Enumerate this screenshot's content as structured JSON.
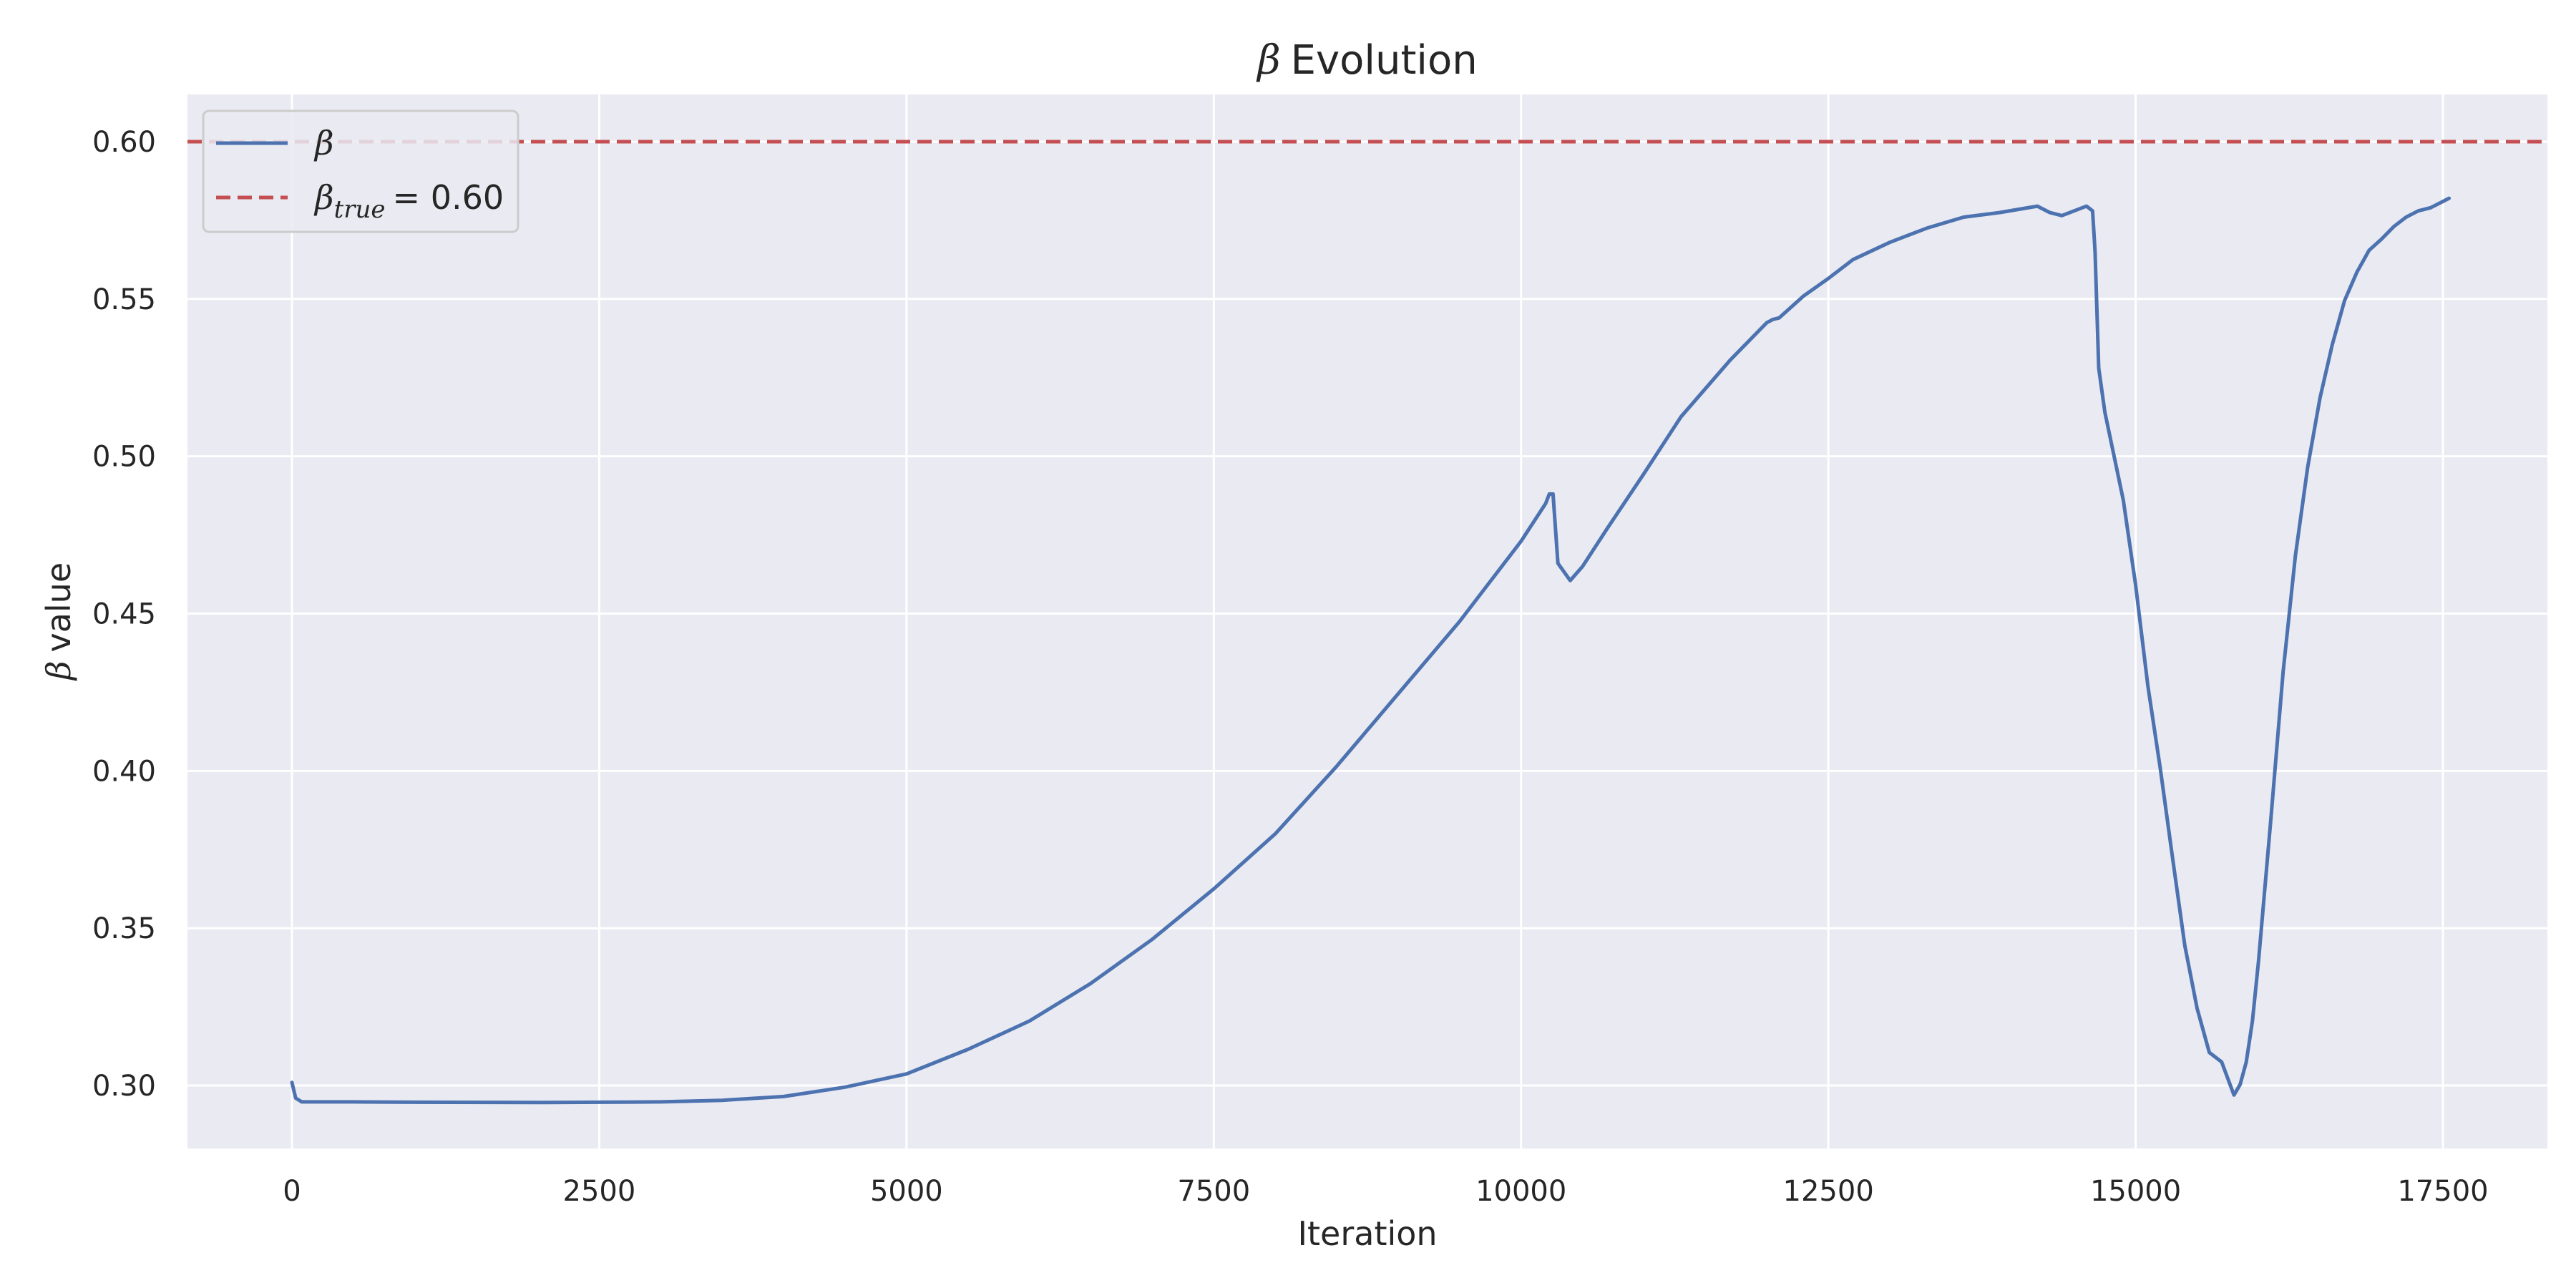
{
  "chart_data": {
    "type": "line",
    "title_symbol": "β",
    "title": "Evolution",
    "xlabel": "Iteration",
    "ylabel_symbol": "β",
    "ylabel": "value",
    "xlim": [
      -850,
      18350
    ],
    "ylim": [
      0.28,
      0.615
    ],
    "x_ticks": [
      0,
      2500,
      5000,
      7500,
      10000,
      12500,
      15000,
      17500
    ],
    "y_ticks": [
      0.3,
      0.35,
      0.4,
      0.45,
      0.5,
      0.55,
      0.6
    ],
    "y_tick_labels": [
      "0.30",
      "0.35",
      "0.40",
      "0.45",
      "0.50",
      "0.55",
      "0.60"
    ],
    "grid": true,
    "background": "#eaeaf2",
    "legend_position": "top-left",
    "series": [
      {
        "name": "β",
        "color": "#4c72b0",
        "style": "solid",
        "x": [
          0,
          30,
          80,
          500,
          1000,
          2000,
          3000,
          3500,
          4000,
          4500,
          5000,
          5500,
          6000,
          6500,
          7000,
          7500,
          8000,
          8500,
          9000,
          9500,
          10000,
          10200,
          10230,
          10260,
          10300,
          10400,
          10500,
          10700,
          11000,
          11300,
          11700,
          12000,
          12050,
          12100,
          12300,
          12500,
          12700,
          13000,
          13300,
          13600,
          13900,
          14200,
          14300,
          14400,
          14500,
          14600,
          14650,
          14670,
          14700,
          14750,
          14900,
          15000,
          15100,
          15200,
          15300,
          15400,
          15500,
          15600,
          15700,
          15800,
          15850,
          15900,
          15950,
          16000,
          16100,
          16200,
          16300,
          16400,
          16500,
          16600,
          16700,
          16800,
          16900,
          17000,
          17100,
          17200,
          17300,
          17400,
          17550
        ],
        "y": [
          0.301,
          0.296,
          0.2948,
          0.2948,
          0.2947,
          0.2946,
          0.2948,
          0.2953,
          0.2965,
          0.2995,
          0.3037,
          0.3115,
          0.3205,
          0.3325,
          0.3465,
          0.3625,
          0.38,
          0.4015,
          0.4245,
          0.4475,
          0.473,
          0.485,
          0.488,
          0.488,
          0.466,
          0.4605,
          0.465,
          0.477,
          0.4945,
          0.5125,
          0.5305,
          0.5425,
          0.5435,
          0.544,
          0.551,
          0.5565,
          0.5625,
          0.568,
          0.5725,
          0.576,
          0.5775,
          0.5795,
          0.5775,
          0.5765,
          0.578,
          0.5795,
          0.578,
          0.565,
          0.528,
          0.514,
          0.486,
          0.459,
          0.427,
          0.401,
          0.3725,
          0.3445,
          0.3245,
          0.3105,
          0.3075,
          0.297,
          0.3003,
          0.3075,
          0.3205,
          0.3395,
          0.3845,
          0.4315,
          0.4685,
          0.4965,
          0.5185,
          0.5355,
          0.5495,
          0.5585,
          0.5655,
          0.569,
          0.573,
          0.576,
          0.578,
          0.579,
          0.582
        ]
      },
      {
        "name_symbol": "β",
        "name_sub": "true",
        "name_value": "= 0.60",
        "color": "#c44e52",
        "style": "dashed",
        "y_constant": 0.6
      }
    ]
  }
}
